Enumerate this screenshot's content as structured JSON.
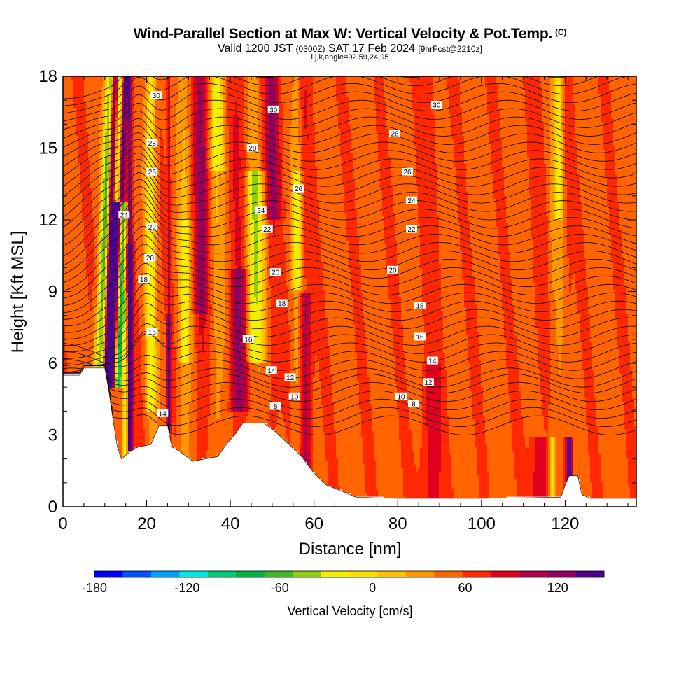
{
  "header": {
    "title": "Wind-Parallel Section at Max W: Vertical Velocity & Pot.Temp.",
    "title_mark": "(C)",
    "subtitle_valid": "Valid 1200 JST",
    "subtitle_z": "(0300Z)",
    "subtitle_date": "SAT 17 Feb 2024",
    "subtitle_fcst": "[9hrFcst@2210z]",
    "meta": "i,j,k,angle=92,59,24,95"
  },
  "chart_data": {
    "type": "heatmap",
    "xlabel": "Distance [nm]",
    "ylabel": "Height [Kft MSL]",
    "xlim": [
      0,
      137
    ],
    "ylim": [
      0,
      18
    ],
    "x_ticks": [
      0,
      20,
      40,
      60,
      80,
      100,
      120
    ],
    "y_ticks": [
      0,
      3,
      6,
      9,
      12,
      15,
      18
    ],
    "colorbar": {
      "label": "Vertical Velocity [cm/s]",
      "range": [
        -180,
        150
      ],
      "step": 15,
      "tick_values": [
        -180,
        -120,
        -60,
        0,
        60,
        120
      ],
      "colors": [
        "#0000ff",
        "#0050ff",
        "#00a0ff",
        "#00e8e8",
        "#00c878",
        "#00b040",
        "#40b820",
        "#90d010",
        "#f0f000",
        "#ffe000",
        "#ffc000",
        "#ff9800",
        "#ff6400",
        "#ff2800",
        "#e00020",
        "#b00048",
        "#900060",
        "#500090"
      ]
    },
    "isentrope_labels": [
      30,
      28,
      26,
      24,
      22,
      20,
      18,
      16,
      14,
      12,
      10,
      8
    ],
    "terrain_profile": [
      [
        0,
        5.5
      ],
      [
        4,
        5.5
      ],
      [
        5,
        5.8
      ],
      [
        10,
        5.8
      ],
      [
        11,
        4.8
      ],
      [
        12,
        3.6
      ],
      [
        13,
        2.5
      ],
      [
        14,
        2.0
      ],
      [
        16,
        2.3
      ],
      [
        18,
        2.5
      ],
      [
        21,
        2.6
      ],
      [
        23,
        3.4
      ],
      [
        25,
        3.4
      ],
      [
        26,
        2.5
      ],
      [
        28,
        2.3
      ],
      [
        31,
        1.9
      ],
      [
        34,
        2.0
      ],
      [
        37,
        2.1
      ],
      [
        39,
        2.6
      ],
      [
        41,
        3.0
      ],
      [
        43,
        3.5
      ],
      [
        48,
        3.5
      ],
      [
        51,
        3.1
      ],
      [
        54,
        2.6
      ],
      [
        57,
        2.1
      ],
      [
        60,
        1.4
      ],
      [
        63,
        0.9
      ],
      [
        66,
        0.7
      ],
      [
        70,
        0.4
      ],
      [
        80,
        0.35
      ],
      [
        100,
        0.35
      ],
      [
        119,
        0.4
      ],
      [
        120,
        0.9
      ],
      [
        121,
        1.3
      ],
      [
        123,
        1.3
      ],
      [
        124,
        0.5
      ],
      [
        126,
        0.35
      ],
      [
        137,
        0.35
      ]
    ]
  }
}
